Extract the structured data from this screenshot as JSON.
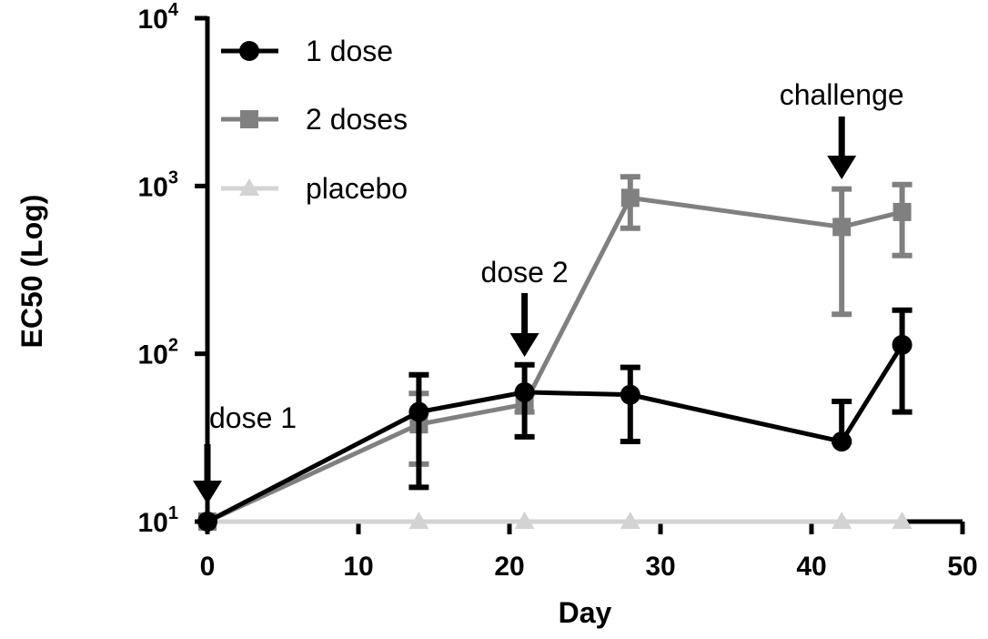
{
  "chart_data": {
    "type": "line",
    "title": "",
    "xlabel": "Day",
    "ylabel": "EC50 (Log)",
    "xlim": [
      0,
      50
    ],
    "ylim": [
      10,
      10000
    ],
    "yscale": "log",
    "x_ticks": [
      "0",
      "10",
      "20",
      "30",
      "40",
      "50"
    ],
    "y_ticks": [
      {
        "base": "10",
        "exp": "1"
      },
      {
        "base": "10",
        "exp": "2"
      },
      {
        "base": "10",
        "exp": "3"
      },
      {
        "base": "10",
        "exp": "4"
      }
    ],
    "grid": false,
    "legend_position": "top-left",
    "series": [
      {
        "name": "1 dose",
        "color": "#000000",
        "marker": "circle",
        "x": [
          0,
          14,
          21,
          28,
          42,
          46
        ],
        "values": [
          10,
          45,
          59,
          57,
          30,
          113
        ],
        "err_low": [
          10,
          16,
          32,
          30,
          30,
          45
        ],
        "err_high": [
          10,
          75,
          86,
          83,
          52,
          182
        ]
      },
      {
        "name": "2 doses",
        "color": "#808080",
        "marker": "square",
        "x": [
          0,
          14,
          21,
          28,
          42,
          46
        ],
        "values": [
          10,
          38,
          50,
          850,
          570,
          700
        ],
        "err_low": [
          10,
          22,
          45,
          560,
          172,
          385
        ],
        "err_high": [
          10,
          58,
          58,
          1135,
          960,
          1020
        ]
      },
      {
        "name": "placebo",
        "color": "#d3d3d3",
        "marker": "triangle",
        "x": [
          0,
          14,
          21,
          28,
          42,
          46
        ],
        "values": [
          10,
          10,
          10,
          10,
          10,
          10
        ]
      }
    ],
    "annotations": [
      {
        "text": "dose 1",
        "x": 0,
        "y": 10
      },
      {
        "text": "dose 2",
        "x": 21,
        "y": 59
      },
      {
        "text": "challenge",
        "x": 42,
        "y": 570
      }
    ]
  }
}
